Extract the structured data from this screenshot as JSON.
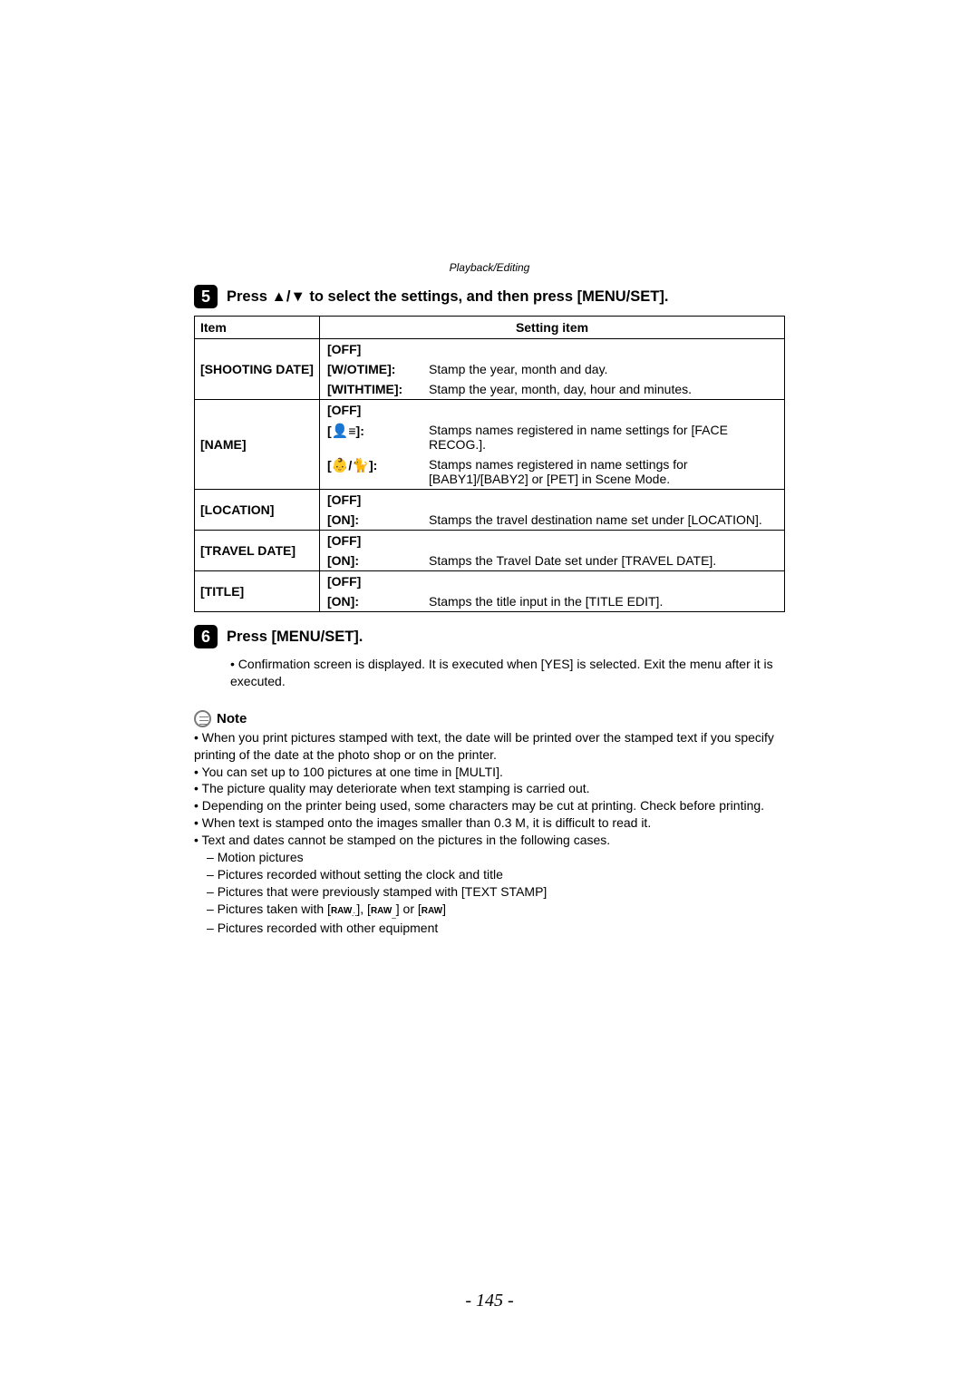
{
  "breadcrumb": "Playback/Editing",
  "step5": {
    "number": "5",
    "text": "Press ▲/▼ to select the settings, and then press [MENU/SET]."
  },
  "table": {
    "headers": {
      "item": "Item",
      "setting": "Setting item"
    },
    "rows": [
      {
        "item": "[SHOOTING DATE]",
        "settings": [
          {
            "key": "[OFF]",
            "val": ""
          },
          {
            "key": "[W/OTIME]:",
            "val": "Stamp the year, month and day."
          },
          {
            "key": "[WITHTIME]:",
            "val": "Stamp the year, month, day, hour and minutes."
          }
        ]
      },
      {
        "item": "[NAME]",
        "settings": [
          {
            "key": "[OFF]",
            "val": ""
          },
          {
            "key": "ICON_FACE",
            "key_suffix": ":",
            "val": "Stamps names registered in name settings for [FACE RECOG.]."
          },
          {
            "key": "ICON_BABY",
            "key_suffix": ":",
            "val": "Stamps names registered in name settings for [BABY1]/[BABY2] or [PET] in Scene Mode."
          }
        ]
      },
      {
        "item": "[LOCATION]",
        "settings": [
          {
            "key": "[OFF]",
            "val": ""
          },
          {
            "key": "[ON]:",
            "val": "Stamps the travel destination name set under [LOCATION]."
          }
        ]
      },
      {
        "item": "[TRAVEL DATE]",
        "settings": [
          {
            "key": "[OFF]",
            "val": ""
          },
          {
            "key": "[ON]:",
            "val": "Stamps the Travel Date set under [TRAVEL DATE]."
          }
        ]
      },
      {
        "item": "[TITLE]",
        "settings": [
          {
            "key": "[OFF]",
            "val": ""
          },
          {
            "key": "[ON]:",
            "val": "Stamps the title input in the [TITLE EDIT]."
          }
        ]
      }
    ]
  },
  "step6": {
    "number": "6",
    "text": "Press [MENU/SET].",
    "bullets": [
      "Confirmation screen is displayed. It is executed when [YES] is selected. Exit the menu after it is executed."
    ]
  },
  "note": {
    "label": "Note",
    "items": [
      {
        "text": "When you print pictures stamped with text, the date will be printed over the stamped text if you specify printing of the date at the photo shop or on the printer."
      },
      {
        "text": "You can set up to 100 pictures at one time in [MULTI]."
      },
      {
        "text": "The picture quality may deteriorate when text stamping is carried out."
      },
      {
        "text": "Depending on the printer being used, some characters may be cut at printing. Check before printing."
      },
      {
        "text": "When text is stamped onto the images smaller than 0.3 M, it is difficult to read it."
      },
      {
        "text": "Text and dates cannot be stamped on the pictures in the following cases.",
        "subs": [
          "Motion pictures",
          "Pictures recorded without setting the clock and title",
          "Pictures that were previously stamped with [TEXT STAMP]",
          "RAW_ICONS",
          "Pictures recorded with other equipment"
        ]
      }
    ]
  },
  "raw_line_prefix": "Pictures taken with [",
  "raw_line_mid1": "], [",
  "raw_line_mid2": "] or [",
  "raw_line_suffix": "]",
  "raw_label": "RAW",
  "pageNumber": "- 145 -"
}
